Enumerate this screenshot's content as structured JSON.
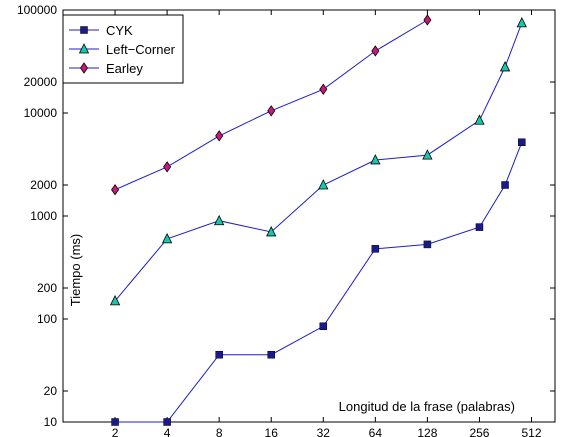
{
  "chart_data": {
    "type": "line",
    "xlabel": "Longitud de la frase (palabras)",
    "ylabel": "Tiempo (ms)",
    "x_scale": "log2",
    "y_scale": "log10",
    "xlim": [
      1,
      700
    ],
    "ylim": [
      10,
      100000
    ],
    "x_ticks": [
      2,
      4,
      8,
      16,
      32,
      64,
      128,
      256,
      512
    ],
    "y_ticks": [
      10,
      20,
      100,
      200,
      1000,
      2000,
      10000,
      20000,
      100000
    ],
    "grid": false,
    "legend_position": "top-left",
    "series": [
      {
        "name": "CYK",
        "marker": "square",
        "color": "#1a1a8c",
        "points": [
          [
            2,
            10
          ],
          [
            4,
            10
          ],
          [
            8,
            45
          ],
          [
            16,
            45
          ],
          [
            32,
            85
          ],
          [
            64,
            480
          ],
          [
            128,
            530
          ],
          [
            256,
            780
          ],
          [
            360,
            2000
          ],
          [
            450,
            5200
          ]
        ]
      },
      {
        "name": "Left−Corner",
        "marker": "triangle",
        "color": "#1ac6a8",
        "points": [
          [
            2,
            150
          ],
          [
            4,
            600
          ],
          [
            8,
            900
          ],
          [
            16,
            700
          ],
          [
            32,
            2000
          ],
          [
            64,
            3500
          ],
          [
            128,
            3900
          ],
          [
            256,
            8500
          ],
          [
            360,
            28000
          ],
          [
            450,
            75000
          ]
        ]
      },
      {
        "name": "Earley",
        "marker": "diamond",
        "color": "#c8187a",
        "points": [
          [
            2,
            1800
          ],
          [
            4,
            3000
          ],
          [
            8,
            6000
          ],
          [
            16,
            10500
          ],
          [
            32,
            17000
          ],
          [
            64,
            40000
          ],
          [
            128,
            80000
          ]
        ]
      }
    ]
  }
}
